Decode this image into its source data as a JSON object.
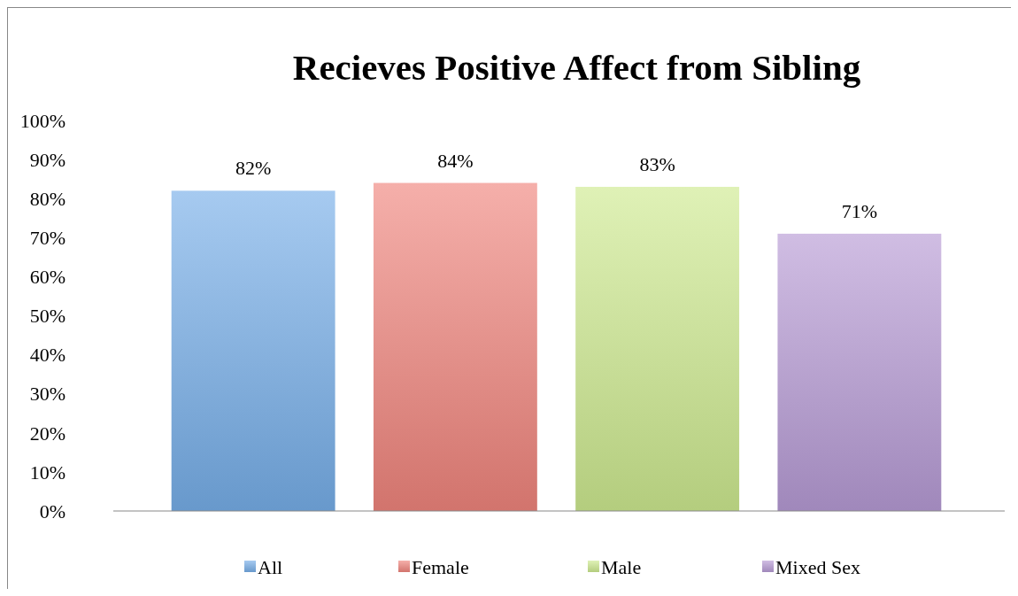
{
  "chart_data": {
    "type": "bar",
    "title": "Recieves Positive Affect from Sibling",
    "categories": [
      null,
      null,
      null,
      null
    ],
    "series": [
      {
        "name": "All",
        "color": "#76aee8",
        "values": [
          82,
          null,
          null,
          null
        ]
      },
      {
        "name": "Female",
        "color": "#ef847c",
        "values": [
          null,
          84,
          null,
          null
        ]
      },
      {
        "name": "Male",
        "color": "#cde98f",
        "values": [
          null,
          null,
          83,
          null
        ]
      },
      {
        "name": "Mixed Sex",
        "color": "#b69ad4",
        "values": [
          null,
          null,
          null,
          71
        ]
      }
    ],
    "ylim": [
      0,
      100
    ],
    "yticks": [
      {
        "value": 0,
        "label": "0%"
      },
      {
        "value": 10,
        "label": "10%"
      },
      {
        "value": 20,
        "label": "20%"
      },
      {
        "value": 30,
        "label": "30%"
      },
      {
        "value": 40,
        "label": "40%"
      },
      {
        "value": 50,
        "label": "50%"
      },
      {
        "value": 60,
        "label": "60%"
      },
      {
        "value": 70,
        "label": "70%"
      },
      {
        "value": 80,
        "label": "80%"
      },
      {
        "value": 90,
        "label": "90%"
      },
      {
        "value": 100,
        "label": "100%"
      }
    ],
    "value_labels": [
      "82%",
      "84%",
      "83%",
      "71%"
    ],
    "grid": false,
    "legend": "bottom"
  }
}
